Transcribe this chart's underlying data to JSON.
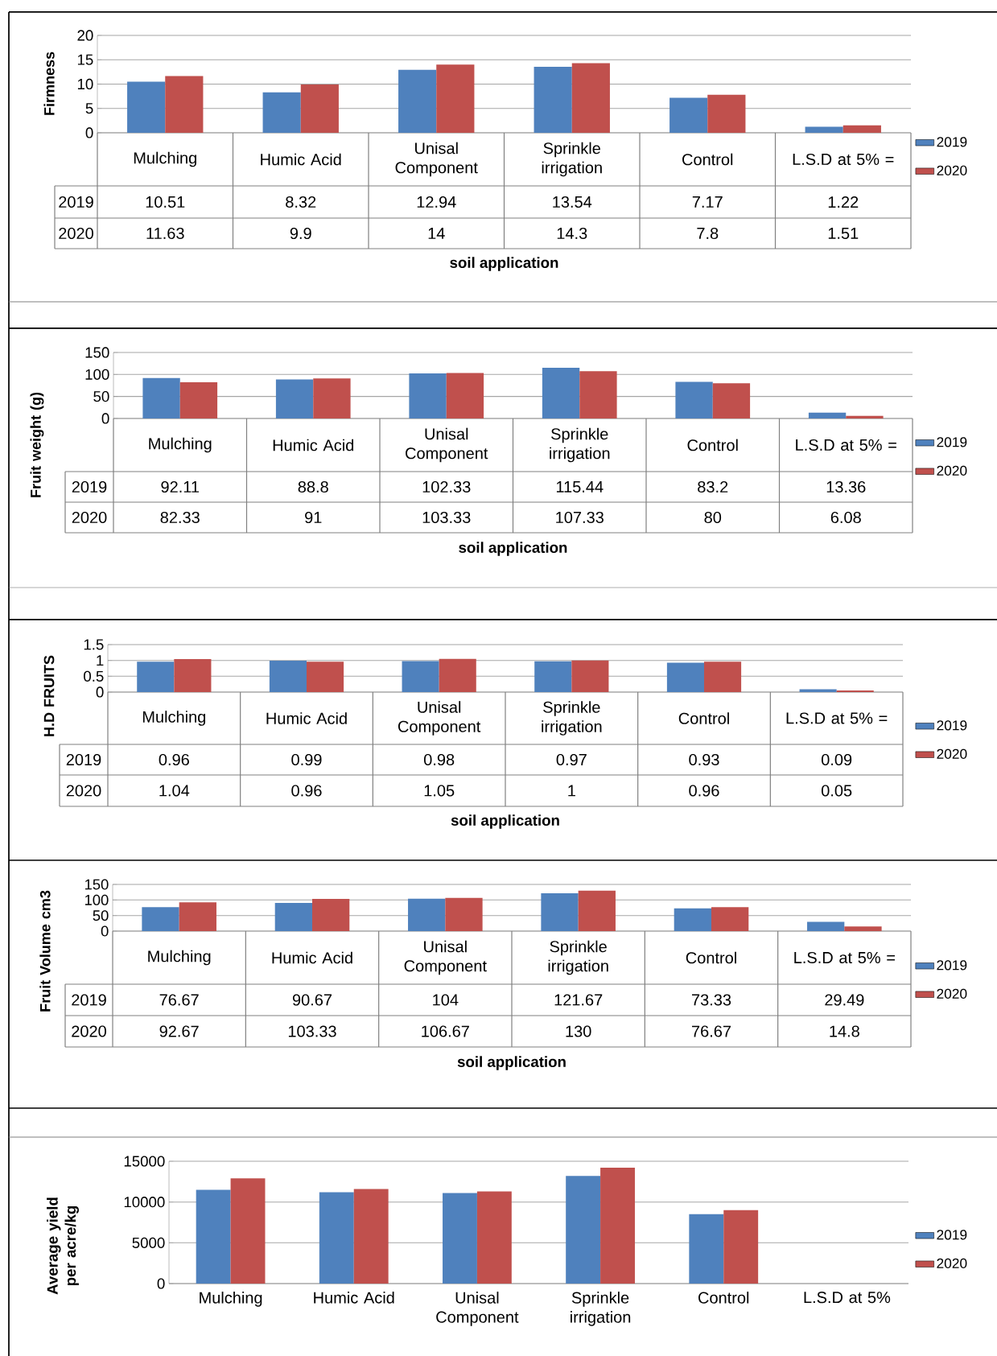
{
  "chart_data": [
    {
      "type": "bar",
      "ylabel": "Firmness",
      "xlabel": "soil application",
      "categories": [
        "Mulching",
        "Humic Acid",
        "Unisal Component",
        "Sprinkle irrigation",
        "Control",
        "L.S.D at 5% ="
      ],
      "ylim": [
        0,
        20
      ],
      "yticks": [
        0,
        5,
        10,
        15,
        20
      ],
      "grid": "y",
      "legend": "right",
      "data_labels": true,
      "series": [
        {
          "name": "2019",
          "color": "#4f81bd",
          "values": [
            10.51,
            8.32,
            12.94,
            13.54,
            7.17,
            1.22
          ]
        },
        {
          "name": "2020",
          "color": "#c0504d",
          "values": [
            11.63,
            9.9,
            14,
            14.3,
            7.8,
            1.51
          ]
        }
      ]
    },
    {
      "type": "bar",
      "ylabel": "Fruit weight (g)",
      "xlabel": "soil application",
      "categories": [
        "Mulching",
        "Humic Acid",
        "Unisal Component",
        "Sprinkle irrigation",
        "Control",
        "L.S.D at 5% ="
      ],
      "ylim": [
        0,
        150
      ],
      "yticks": [
        0,
        50,
        100,
        150
      ],
      "grid": "y",
      "legend": "right",
      "data_labels": true,
      "series": [
        {
          "name": "2019",
          "color": "#4f81bd",
          "values": [
            92.11,
            88.8,
            102.33,
            115.44,
            83.2,
            13.36
          ]
        },
        {
          "name": "2020",
          "color": "#c0504d",
          "values": [
            82.33,
            91,
            103.33,
            107.33,
            80,
            6.08
          ]
        }
      ]
    },
    {
      "type": "bar",
      "ylabel": "H.D FRUITS",
      "xlabel": "soil application",
      "categories": [
        "Mulching",
        "Humic Acid",
        "Unisal Component",
        "Sprinkle irrigation",
        "Control",
        "L.S.D at 5% ="
      ],
      "ylim": [
        0,
        1.5
      ],
      "yticks": [
        0,
        0.5,
        1,
        1.5
      ],
      "grid": "y",
      "legend": "right",
      "data_labels": true,
      "series": [
        {
          "name": "2019",
          "color": "#4f81bd",
          "values": [
            0.96,
            0.99,
            0.98,
            0.97,
            0.93,
            0.09
          ]
        },
        {
          "name": "2020",
          "color": "#c0504d",
          "values": [
            1.04,
            0.96,
            1.05,
            1,
            0.96,
            0.05
          ]
        }
      ]
    },
    {
      "type": "bar",
      "ylabel": "Fruit Volume cm3",
      "xlabel": "soil application",
      "categories": [
        "Mulching",
        "Humic Acid",
        "Unisal Component",
        "Sprinkle irrigation",
        "Control",
        "L.S.D at 5% ="
      ],
      "ylim": [
        0,
        150
      ],
      "yticks": [
        0,
        50,
        100,
        150
      ],
      "grid": "y",
      "legend": "right",
      "data_labels": true,
      "series": [
        {
          "name": "2019",
          "color": "#4f81bd",
          "values": [
            76.67,
            90.67,
            104,
            121.67,
            73.33,
            29.49
          ]
        },
        {
          "name": "2020",
          "color": "#c0504d",
          "values": [
            92.67,
            103.33,
            106.67,
            130,
            76.67,
            14.8
          ]
        }
      ]
    },
    {
      "type": "bar",
      "ylabel": "Average yield per acre/kg",
      "categories": [
        "Mulching",
        "Humic Acid",
        "Unisal Component",
        "Sprinkle irrigation",
        "Control",
        "L.S.D at 5%"
      ],
      "ylim": [
        0,
        15000
      ],
      "yticks": [
        0,
        5000,
        10000,
        15000
      ],
      "grid": "y",
      "legend": "right",
      "series": [
        {
          "name": "2019",
          "color": "#4f81bd",
          "values": [
            11500,
            11200,
            11100,
            13200,
            8500,
            null
          ]
        },
        {
          "name": "2020",
          "color": "#c0504d",
          "values": [
            12900,
            11600,
            11300,
            14200,
            9000,
            null
          ]
        }
      ]
    }
  ]
}
